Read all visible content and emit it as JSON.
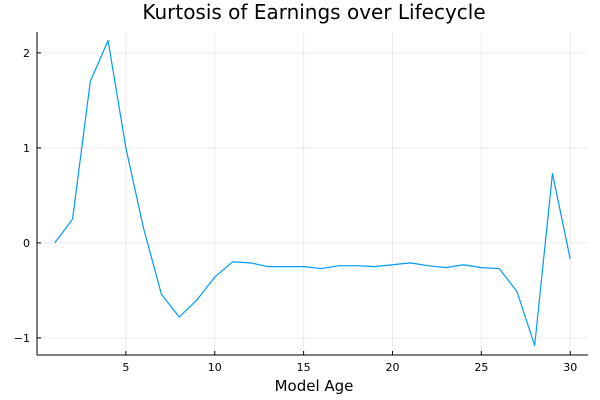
{
  "chart_data": {
    "type": "line",
    "title": "Kurtosis of Earnings over Lifecycle",
    "xlabel": "Model Age",
    "ylabel": "",
    "xlim": [
      0,
      31
    ],
    "ylim": [
      -1.18,
      2.22
    ],
    "xticks": [
      5,
      10,
      15,
      20,
      25,
      30
    ],
    "yticks": [
      -1,
      0,
      1,
      2
    ],
    "ytick_labels": [
      "−1",
      "0",
      "1",
      "2"
    ],
    "grid": true,
    "legend": "none",
    "series": [
      {
        "color": "#009AFA",
        "x": [
          1,
          2,
          3,
          4,
          5,
          6,
          7,
          8,
          9,
          10,
          11,
          12,
          13,
          14,
          15,
          16,
          17,
          18,
          19,
          20,
          21,
          22,
          23,
          24,
          25,
          26,
          27,
          28,
          29,
          30
        ],
        "values": [
          0.0,
          0.25,
          1.7,
          2.13,
          1.0,
          0.15,
          -0.54,
          -0.78,
          -0.6,
          -0.36,
          -0.2,
          -0.21,
          -0.25,
          -0.25,
          -0.25,
          -0.27,
          -0.24,
          -0.24,
          -0.25,
          -0.23,
          -0.21,
          -0.24,
          -0.26,
          -0.23,
          -0.26,
          -0.27,
          -0.51,
          -1.08,
          0.73,
          -0.17
        ]
      }
    ]
  }
}
